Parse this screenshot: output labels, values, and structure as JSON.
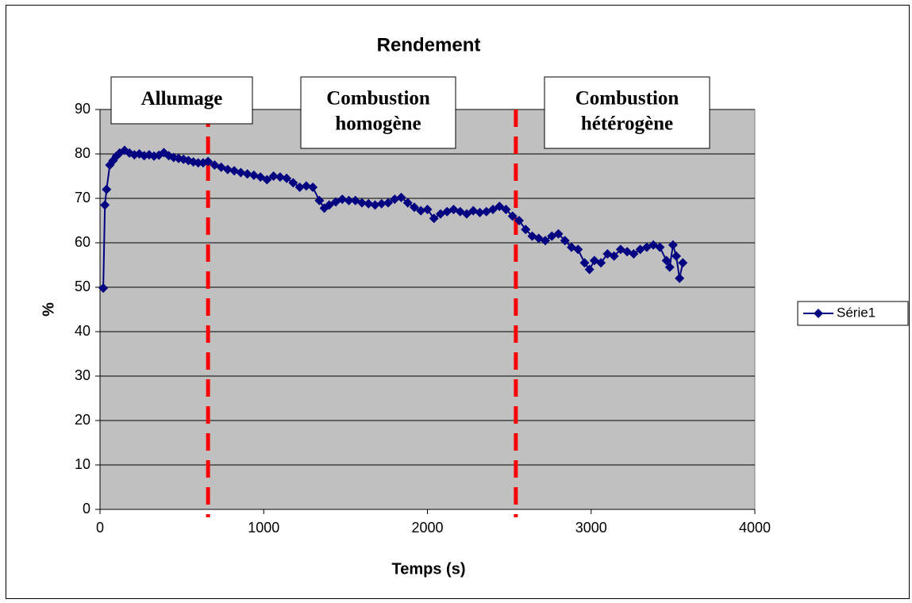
{
  "chart_data": {
    "type": "line",
    "title": "Rendement",
    "xlabel": "Temps (s)",
    "ylabel": "%",
    "x": [
      20,
      30,
      40,
      60,
      80,
      100,
      120,
      150,
      180,
      210,
      240,
      270,
      300,
      330,
      360,
      390,
      420,
      450,
      480,
      510,
      540,
      570,
      600,
      630,
      660,
      700,
      740,
      780,
      820,
      860,
      900,
      940,
      980,
      1020,
      1060,
      1100,
      1140,
      1180,
      1220,
      1260,
      1300,
      1340,
      1370,
      1400,
      1440,
      1480,
      1520,
      1560,
      1600,
      1640,
      1680,
      1720,
      1760,
      1800,
      1840,
      1880,
      1920,
      1960,
      2000,
      2040,
      2080,
      2120,
      2160,
      2200,
      2240,
      2280,
      2320,
      2360,
      2400,
      2440,
      2480,
      2520,
      2560,
      2600,
      2640,
      2680,
      2720,
      2760,
      2800,
      2840,
      2880,
      2920,
      2960,
      2990,
      3020,
      3060,
      3100,
      3140,
      3180,
      3220,
      3260,
      3300,
      3340,
      3380,
      3420,
      3460,
      3480,
      3500,
      3520,
      3540,
      3560
    ],
    "series": [
      {
        "name": "Série1",
        "color": "#000080",
        "values": [
          49.8,
          68.5,
          72,
          77.5,
          78.5,
          79.5,
          80.2,
          80.8,
          80.2,
          79.8,
          80,
          79.6,
          79.8,
          79.5,
          79.7,
          80.3,
          79.6,
          79.2,
          79,
          78.8,
          78.5,
          78.2,
          78,
          78,
          78.3,
          77.5,
          77,
          76.5,
          76.2,
          75.8,
          75.5,
          75.2,
          74.8,
          74.2,
          75,
          74.8,
          74.5,
          73.5,
          72.5,
          72.8,
          72.5,
          69.5,
          67.8,
          68.5,
          69.2,
          69.8,
          69.5,
          69.5,
          69,
          68.8,
          68.5,
          68.8,
          69,
          69.8,
          70.2,
          69,
          68,
          67.2,
          67.5,
          65.5,
          66.5,
          67,
          67.5,
          67,
          66.5,
          67.2,
          66.8,
          67,
          67.5,
          68.2,
          67.5,
          66,
          65,
          63,
          61.5,
          61,
          60.5,
          61.5,
          62,
          60.5,
          59,
          58.5,
          55.5,
          54,
          56,
          55.5,
          57.5,
          57,
          58.5,
          58,
          57.5,
          58.5,
          59,
          59.5,
          59,
          56,
          54.5,
          59.5,
          57,
          52,
          55.5
        ]
      }
    ],
    "xlim": [
      0,
      4000
    ],
    "xticks": [
      0,
      1000,
      2000,
      3000,
      4000
    ],
    "ylim": [
      0,
      90
    ],
    "yticks": [
      0,
      10,
      20,
      30,
      40,
      50,
      60,
      70,
      80,
      90
    ],
    "grid": true,
    "plot_background": "#c0c0c0",
    "legend": "right",
    "vlines": [
      660,
      2540
    ],
    "vline_color": "#ff0000",
    "annotations": [
      [
        "Allumage"
      ],
      [
        "Combustion",
        "homogène"
      ],
      [
        "Combustion",
        "hétérogène"
      ]
    ]
  }
}
